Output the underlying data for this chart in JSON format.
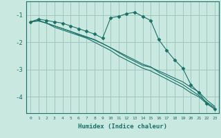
{
  "xlabel": "Humidex (Indice chaleur)",
  "ylabel": "",
  "bg_color": "#c8e8e0",
  "grid_color": "#a0c8c0",
  "line_color": "#1a7068",
  "xlim": [
    -0.5,
    23.5
  ],
  "ylim": [
    -4.6,
    -0.5
  ],
  "yticks": [
    -4,
    -3,
    -2,
    -1
  ],
  "xticks": [
    0,
    1,
    2,
    3,
    4,
    5,
    6,
    7,
    8,
    9,
    10,
    11,
    12,
    13,
    14,
    15,
    16,
    17,
    18,
    19,
    20,
    21,
    22,
    23
  ],
  "series": [
    {
      "x": [
        0,
        1,
        2,
        3,
        4,
        5,
        6,
        7,
        8,
        9,
        10,
        11,
        12,
        13,
        14,
        15,
        16,
        17,
        18,
        19,
        20,
        21,
        22,
        23
      ],
      "y": [
        -1.25,
        -1.15,
        -1.2,
        -1.25,
        -1.3,
        -1.4,
        -1.5,
        -1.6,
        -1.7,
        -1.85,
        -1.1,
        -1.05,
        -0.95,
        -0.9,
        -1.05,
        -1.2,
        -1.9,
        -2.3,
        -2.65,
        -2.95,
        -3.55,
        -3.85,
        -4.25,
        -4.45
      ],
      "marker": "D",
      "markersize": 2.5
    },
    {
      "x": [
        0,
        1,
        2,
        3,
        4,
        5,
        6,
        7,
        8,
        9,
        10,
        11,
        12,
        13,
        14,
        15,
        16,
        17,
        18,
        19,
        20,
        21,
        22,
        23
      ],
      "y": [
        -1.25,
        -1.2,
        -1.3,
        -1.4,
        -1.5,
        -1.6,
        -1.7,
        -1.8,
        -1.9,
        -2.05,
        -2.2,
        -2.35,
        -2.5,
        -2.65,
        -2.8,
        -2.9,
        -3.1,
        -3.25,
        -3.4,
        -3.55,
        -3.75,
        -3.95,
        -4.2,
        -4.4
      ],
      "marker": null,
      "markersize": 0
    },
    {
      "x": [
        0,
        1,
        2,
        3,
        4,
        5,
        6,
        7,
        8,
        9,
        10,
        11,
        12,
        13,
        14,
        15,
        16,
        17,
        18,
        19,
        20,
        21,
        22,
        23
      ],
      "y": [
        -1.25,
        -1.2,
        -1.3,
        -1.45,
        -1.55,
        -1.65,
        -1.75,
        -1.85,
        -2.0,
        -2.15,
        -2.3,
        -2.5,
        -2.65,
        -2.8,
        -2.95,
        -3.05,
        -3.2,
        -3.35,
        -3.5,
        -3.65,
        -3.85,
        -4.0,
        -4.25,
        -4.45
      ],
      "marker": null,
      "markersize": 0
    },
    {
      "x": [
        0,
        1,
        2,
        3,
        4,
        5,
        6,
        7,
        8,
        9,
        10,
        11,
        12,
        13,
        14,
        15,
        16,
        17,
        18,
        19,
        20,
        21,
        22,
        23
      ],
      "y": [
        -1.25,
        -1.22,
        -1.3,
        -1.4,
        -1.5,
        -1.6,
        -1.72,
        -1.82,
        -1.92,
        -2.05,
        -2.2,
        -2.38,
        -2.55,
        -2.7,
        -2.85,
        -2.92,
        -3.05,
        -3.18,
        -3.32,
        -3.45,
        -3.65,
        -3.82,
        -4.12,
        -4.35
      ],
      "marker": null,
      "markersize": 0
    }
  ]
}
